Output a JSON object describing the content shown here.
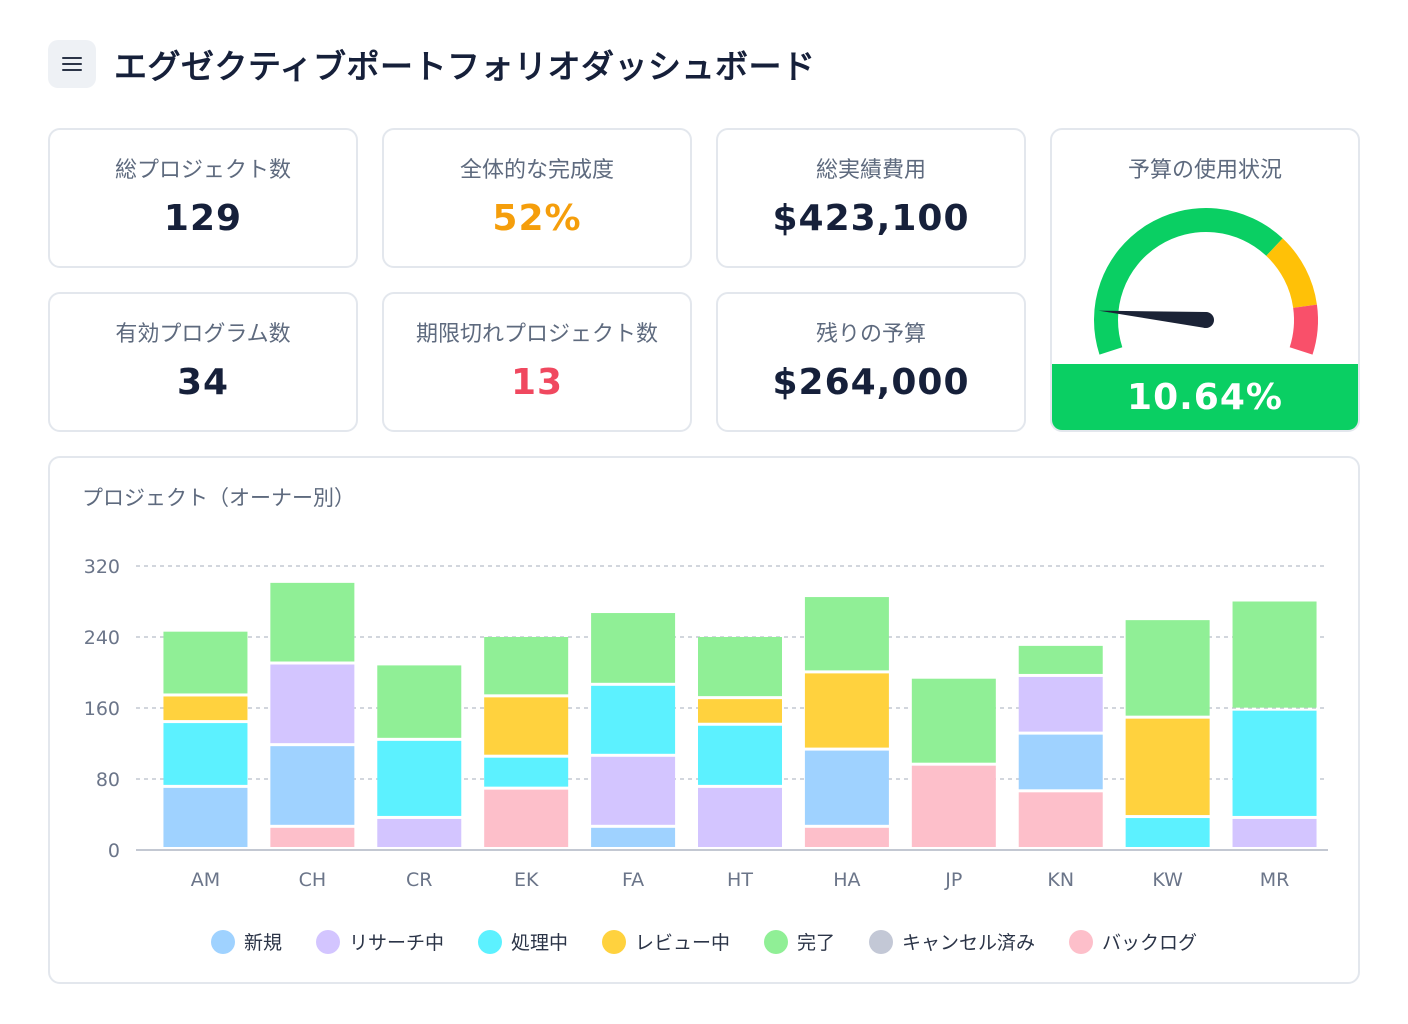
{
  "header": {
    "title": "エグゼクティブポートフォリオダッシュボード",
    "menu_icon": "hamburger-menu-icon"
  },
  "kpis": {
    "total_projects": {
      "label": "総プロジェクト数",
      "value": "129"
    },
    "overall_completion": {
      "label": "全体的な完成度",
      "value": "52%",
      "color": "#f59e0b"
    },
    "total_actual_cost": {
      "label": "総実績費用",
      "value": "$423,100"
    },
    "active_programs": {
      "label": "有効プログラム数",
      "value": "34"
    },
    "overdue_projects": {
      "label": "期限切れプロジェクト数",
      "value": "13",
      "color": "#f0485f"
    },
    "remaining_budget": {
      "label": "残りの予算",
      "value": "$264,000"
    }
  },
  "budget_gauge": {
    "title": "予算の使用状況",
    "value_text": "10.64%",
    "value": 10.64,
    "bands": [
      {
        "from": 0,
        "to": 70,
        "color": "#0acf63"
      },
      {
        "from": 70,
        "to": 88,
        "color": "#ffc107"
      },
      {
        "from": 88,
        "to": 100,
        "color": "#f9506a"
      }
    ],
    "bar_color": "#0acf63"
  },
  "chart_data": {
    "type": "bar",
    "stacked": true,
    "title": "プロジェクト（オーナー別）",
    "categories": [
      "AM",
      "CH",
      "CR",
      "EK",
      "FA",
      "HT",
      "HA",
      "JP",
      "KN",
      "KW",
      "MR"
    ],
    "ylim": [
      0,
      320
    ],
    "yticks": [
      0,
      80,
      160,
      240,
      320
    ],
    "grid": true,
    "legend_position": "bottom",
    "series": [
      {
        "name": "バックログ",
        "color": "#fdbfca",
        "values": [
          0,
          25,
          0,
          68,
          0,
          0,
          25,
          95,
          65,
          0,
          0
        ]
      },
      {
        "name": "新規",
        "color": "#9fd2ff",
        "values": [
          70,
          92,
          0,
          0,
          25,
          0,
          87,
          0,
          65,
          0,
          0
        ]
      },
      {
        "name": "リサーチ中",
        "color": "#d3c5ff",
        "values": [
          0,
          92,
          35,
          0,
          80,
          70,
          0,
          0,
          65,
          0,
          35
        ]
      },
      {
        "name": "処理中",
        "color": "#5cf1ff",
        "values": [
          73,
          0,
          88,
          36,
          80,
          70,
          0,
          0,
          0,
          36,
          122
        ]
      },
      {
        "name": "レビュー中",
        "color": "#ffd23e",
        "values": [
          30,
          0,
          0,
          68,
          0,
          30,
          87,
          0,
          0,
          112,
          0
        ]
      },
      {
        "name": "完了",
        "color": "#90ef96",
        "values": [
          73,
          92,
          85,
          68,
          82,
          70,
          86,
          98,
          35,
          111,
          123
        ]
      },
      {
        "name": "キャンセル済み",
        "color": "#c3c8d6",
        "values": [
          0,
          0,
          0,
          0,
          0,
          0,
          0,
          0,
          0,
          0,
          0
        ]
      }
    ],
    "legend_order": [
      "新規",
      "リサーチ中",
      "処理中",
      "レビュー中",
      "完了",
      "キャンセル済み",
      "バックログ"
    ]
  }
}
